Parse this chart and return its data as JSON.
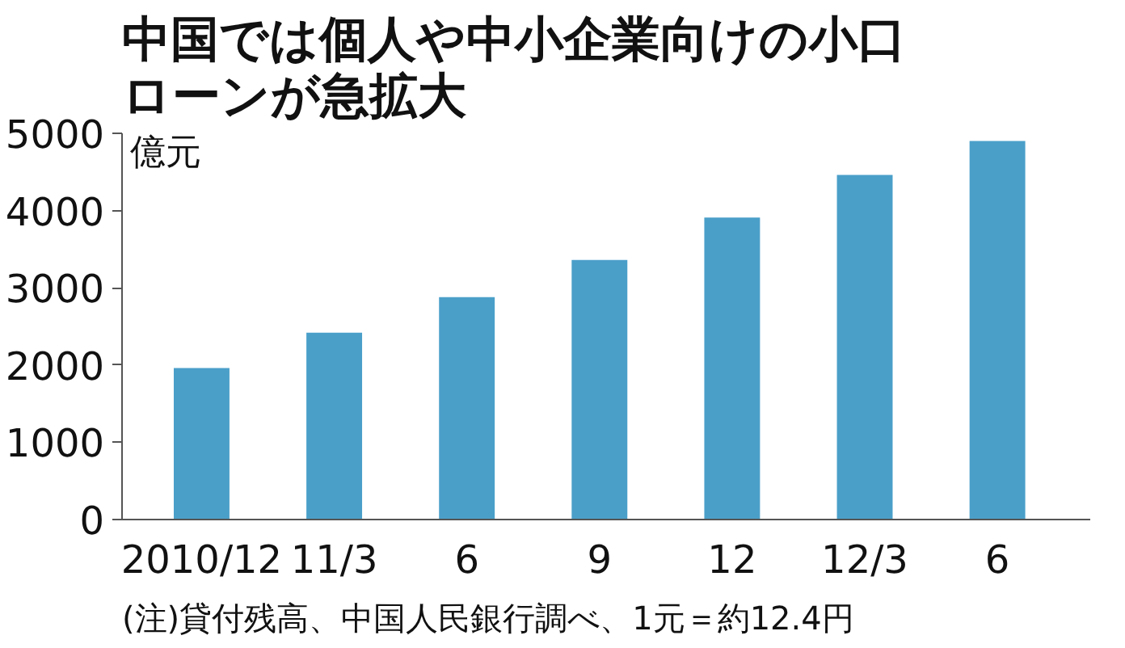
{
  "chart_data": {
    "type": "bar",
    "title": "中国では個人や中小企業向けの小口ローンが急拡大",
    "ylabel": "億元",
    "categories": [
      "2010/12",
      "11/3",
      "6",
      "9",
      "12",
      "12/3",
      "6"
    ],
    "values": [
      1960,
      2420,
      2880,
      3360,
      3910,
      4460,
      4900
    ],
    "color": "#4a9fc9",
    "ylim": [
      0,
      5000
    ],
    "yticks": [
      0,
      1000,
      2000,
      3000,
      4000,
      5000
    ],
    "grid": false,
    "annotations": [
      "(注)貸付残高、中国人民銀行調べ、1元＝約12.4円"
    ]
  }
}
